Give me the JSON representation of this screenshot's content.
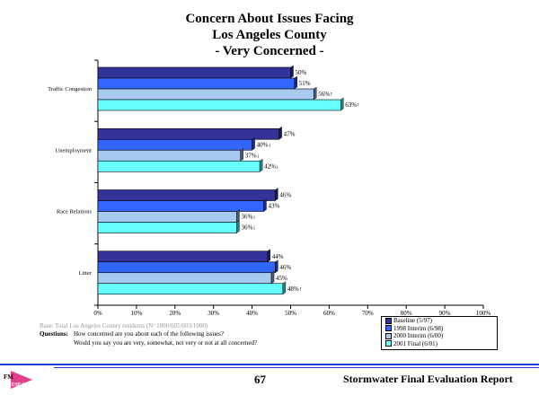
{
  "chart_data": {
    "type": "bar",
    "orientation": "horizontal",
    "title": [
      "Concern About Issues Facing",
      "Los Angeles County",
      "- Very Concerned -"
    ],
    "categories": [
      "Traffic Congestion",
      "Unemployment",
      "Race Relations",
      "Litter"
    ],
    "series": [
      {
        "name": "Baseline (5/97)",
        "color": "#333399",
        "side": "#1a1a55",
        "values": [
          50,
          47,
          46,
          44
        ],
        "labels": [
          "50%",
          "47%",
          "46%",
          "44%"
        ]
      },
      {
        "name": "1998 Interim (6/98)",
        "color": "#3366ff",
        "side": "#1a2a88",
        "values": [
          51,
          40,
          43,
          46
        ],
        "labels": [
          "51%",
          "40%",
          "43%",
          "46%"
        ]
      },
      {
        "name": "2000 Interim (6/00)",
        "color": "#a6caf0",
        "side": "#4a5a70",
        "values": [
          56,
          37,
          36,
          45
        ],
        "labels": [
          "56%",
          "37%",
          "36%",
          "45%"
        ]
      },
      {
        "name": "2001 Final (6/01)",
        "color": "#66ffff",
        "side": "#2a8080",
        "values": [
          63,
          42,
          36,
          48
        ],
        "labels": [
          "63%",
          "42%",
          "36%",
          "48%"
        ]
      }
    ],
    "markers": [
      [
        "",
        "",
        "",
        ""
      ],
      [
        "",
        "down",
        "",
        ""
      ],
      [
        "up",
        "down",
        "down",
        ""
      ],
      [
        "up",
        "down",
        "down",
        "up"
      ]
    ],
    "xlim": [
      0,
      100
    ],
    "xticks": [
      "0%",
      "10%",
      "20%",
      "30%",
      "40%",
      "50%",
      "60%",
      "70%",
      "80%",
      "90%",
      "100%"
    ],
    "legend": "bottom-right"
  },
  "notes": {
    "base": "Base:  Total Los Angeles County residents (N=1000/605/603/1000)",
    "question_label": "Questions:",
    "question1": "How concerned are you about each of the following issues?",
    "question2": "Would you say you are very, somewhat, not very or not at all concerned?"
  },
  "footer": {
    "page": "67",
    "report": "Stormwater Final Evaluation Report",
    "logo": "FM RESEARCH"
  }
}
